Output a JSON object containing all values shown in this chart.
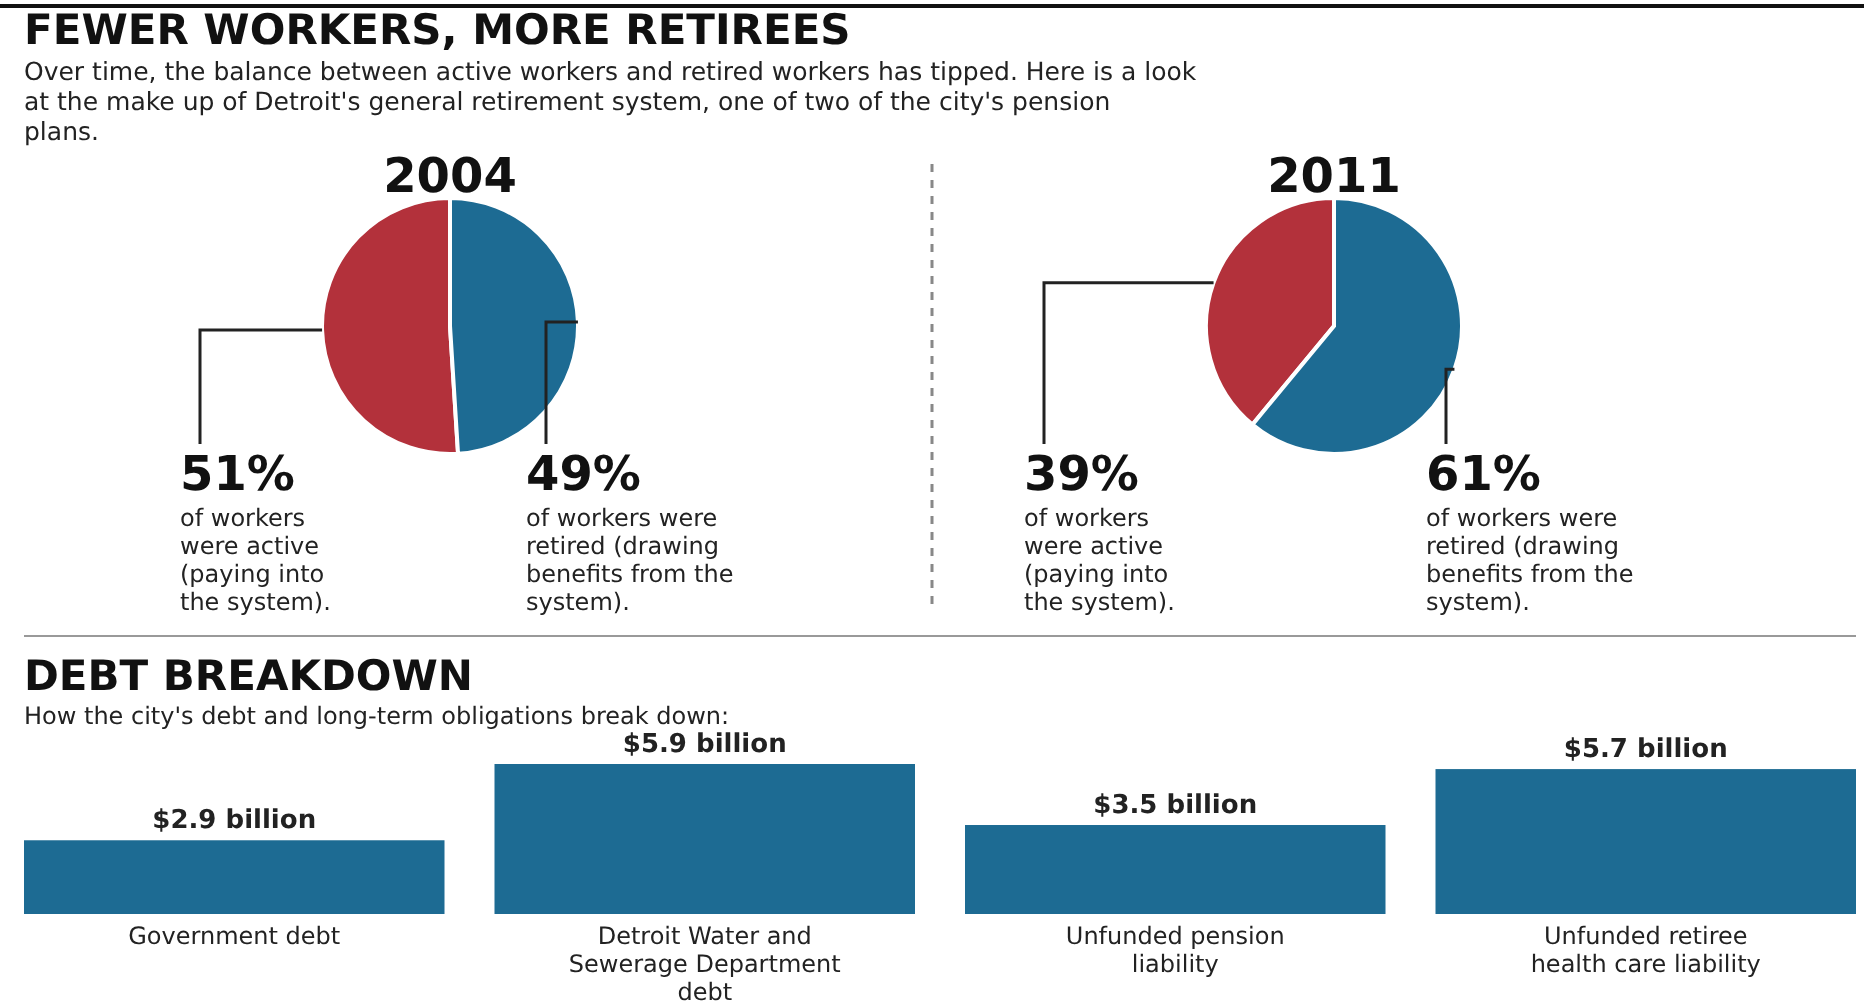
{
  "chart_data": [
    {
      "type": "other",
      "title": "FEWER WORKERS, MORE RETIREES",
      "subtitle": "Over time, the balance between active workers and retired workers has tipped. Here is a look at the make up of Detroit's general retirement system, one of two of the city's pension plans."
    },
    {
      "type": "pie",
      "title": "2004",
      "categories": [
        "of workers were active (paying into the system).",
        "of workers were retired (drawing benefits from the system)."
      ],
      "values": [
        51,
        49
      ],
      "value_labels": [
        "51%",
        "49%"
      ],
      "colors": [
        "#b3313b",
        "#1d6b93"
      ]
    },
    {
      "type": "pie",
      "title": "2011",
      "categories": [
        "of workers were active (paying into the system).",
        "of workers were retired (drawing benefits from the system)."
      ],
      "values": [
        39,
        61
      ],
      "value_labels": [
        "39%",
        "61%"
      ],
      "colors": [
        "#b3313b",
        "#1d6b93"
      ]
    },
    {
      "type": "bar",
      "title": "DEBT BREAKDOWN",
      "subtitle": "How the city's debt and long-term obligations break down:",
      "categories": [
        "Government debt",
        "Detroit Water and Sewerage Department debt",
        "Unfunded pension liability",
        "Unfunded retiree health care liability"
      ],
      "values": [
        2.9,
        5.9,
        3.5,
        5.7
      ],
      "value_labels": [
        "$2.9 billion",
        "$5.9 billion",
        "$3.5 billion",
        "$5.7 billion"
      ],
      "color": "#1d6b93"
    }
  ]
}
